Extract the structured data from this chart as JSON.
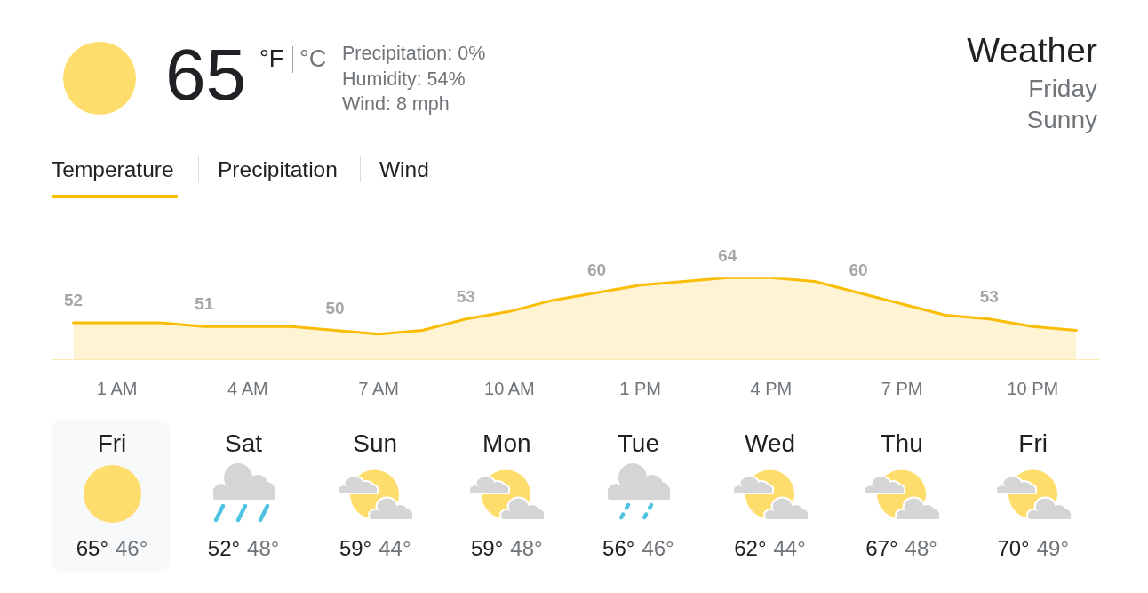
{
  "chart_data": [
    {
      "type": "other",
      "title": "Weather",
      "subtitle": "Friday",
      "annotations": [
        "Sunny",
        "65",
        "°F",
        "°C",
        "Precipitation: 0%",
        "Humidity: 54%",
        "Wind: 8 mph",
        "Temperature",
        "Precipitation",
        "Wind"
      ]
    },
    {
      "type": "area",
      "categories": [
        null,
        "1 AM",
        null,
        null,
        "4 AM",
        null,
        null,
        "7 AM",
        null,
        null,
        "10 AM",
        null,
        null,
        "1 PM",
        null,
        null,
        "4 PM",
        null,
        null,
        "7 PM",
        null,
        null,
        "10 PM",
        null
      ],
      "values": [
        52,
        52,
        52,
        51,
        51,
        51,
        50,
        49,
        50,
        53,
        55,
        58,
        60,
        62,
        63,
        64,
        64,
        63,
        60,
        57,
        54,
        53,
        51,
        50
      ],
      "value_labels": [
        "52",
        null,
        null,
        "51",
        null,
        null,
        "50",
        null,
        null,
        "53",
        null,
        null,
        "60",
        null,
        null,
        "64",
        null,
        null,
        "60",
        null,
        null,
        "53",
        null,
        null
      ],
      "color": "#fbbc04",
      "ylim": [
        42.3,
        64
      ],
      "tick_labels": "x"
    },
    {
      "type": "other",
      "categories": [
        "Fri",
        "Sat",
        "Sun",
        "Mon",
        "Tue",
        "Wed",
        "Thu",
        "Fri"
      ],
      "annotations": [
        "65°",
        "46°",
        "52°",
        "48°",
        "59°",
        "44°",
        "59°",
        "48°",
        "56°",
        "46°",
        "62°",
        "44°",
        "67°",
        "48°",
        "70°",
        "49°"
      ]
    }
  ]
}
